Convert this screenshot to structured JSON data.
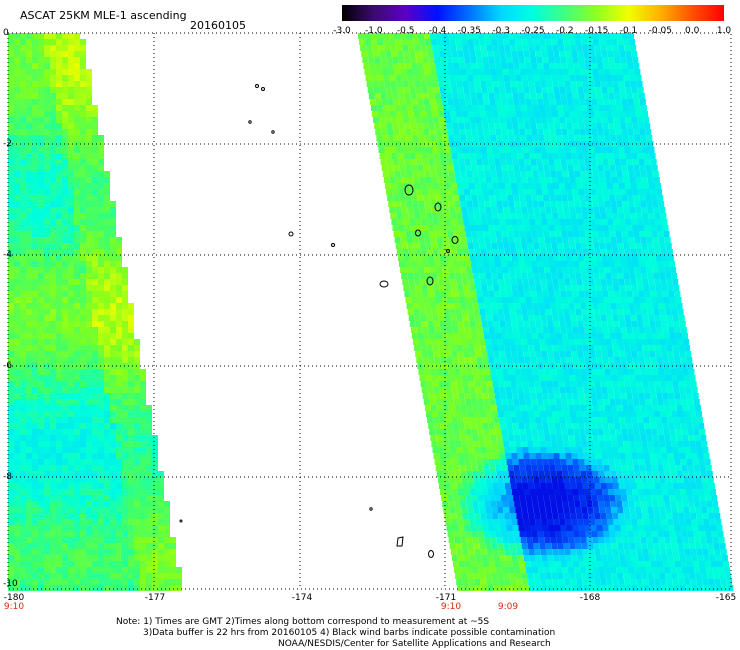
{
  "header": {
    "title": "ASCAT 25KM MLE-1 ascending",
    "date": "20160105"
  },
  "colorbar": {
    "labels": [
      "-3.0",
      "-1.0",
      "-0.5",
      "-0.4",
      "-0.35",
      "-0.3",
      "-0.25",
      "-0.2",
      "-0.15",
      "-0.1",
      "-0.05",
      "0.0",
      "1.0"
    ],
    "colors": [
      "#000000",
      "#3d0a6e",
      "#5a00c8",
      "#0010ff",
      "#0070ff",
      "#00d8ff",
      "#00ffe0",
      "#40ff80",
      "#90ff20",
      "#f0ff00",
      "#ffb000",
      "#ff5000",
      "#ff0000"
    ]
  },
  "axes": {
    "lat_labels": [
      "0",
      "-2",
      "-4",
      "-6",
      "-8",
      "-10"
    ],
    "lon_labels": [
      "-180",
      "-177",
      "-174",
      "-171",
      "-168",
      "-165"
    ],
    "lat_range": [
      0,
      -10
    ],
    "lon_range": [
      -180,
      -165
    ]
  },
  "times": [
    "9:10",
    "9:10",
    "9:09"
  ],
  "notes": {
    "line1": "Note: 1) Times are GMT 2)Times along bottom correspond to measurement at ~5S",
    "line2": "3)Data buffer is 22 hrs from 20160105 4) Black wind barbs indicate possible contamination",
    "line3": "NOAA/NESDIS/Center for Satellite Applications and Research"
  },
  "colors": {
    "grid": "#000000",
    "time_text": "#d62a10"
  }
}
